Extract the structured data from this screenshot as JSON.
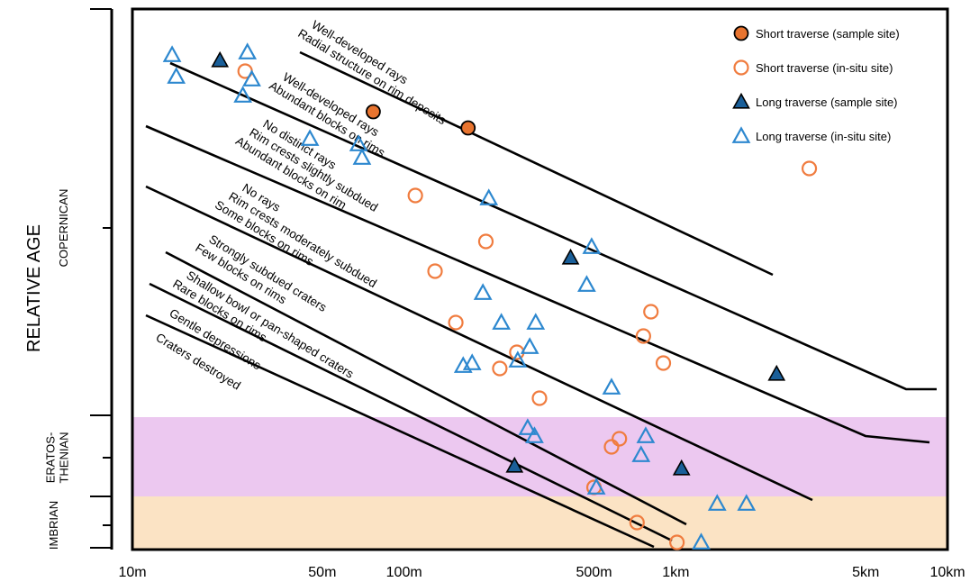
{
  "chart_data": {
    "type": "scatter",
    "ylabel": "RELATIVE AGE",
    "x_scale": "log",
    "xlim": [
      10,
      10000
    ],
    "x_ticks": [
      "10m",
      "50m",
      "100m",
      "500m",
      "1km",
      "5km",
      "10km"
    ],
    "x_tick_values": [
      10,
      50,
      100,
      500,
      1000,
      5000,
      10000
    ],
    "age_periods": [
      {
        "name": "COPERNICAN",
        "color": "#ffffff"
      },
      {
        "name": "ERATOS-\nTHENIAN",
        "color": "#ecc8f0"
      },
      {
        "name": "IMBRIAN",
        "color": "#fbe3c4"
      }
    ],
    "legend": {
      "position": "top-right",
      "entries": [
        {
          "label": "Short traverse (sample site)",
          "marker": "circle-filled",
          "color": "#e8742f"
        },
        {
          "label": "Short traverse (in-situ site)",
          "marker": "circle-open",
          "color": "#f07c3f"
        },
        {
          "label": "Long traverse (sample site)",
          "marker": "triangle-filled",
          "color": "#1a5f99"
        },
        {
          "label": "Long traverse (in-situ site)",
          "marker": "triangle-open",
          "color": "#2d88cf"
        }
      ]
    },
    "zone_labels": [
      [
        "Well-developed rays",
        "Radial structure on rim deposits"
      ],
      [
        "Well-developed rays",
        "Abundant blocks on rims"
      ],
      [
        "No distinct rays",
        "Rim crests slightly subdued",
        "Abundant blocks on rim"
      ],
      [
        "No rays",
        "Rim crests moderately subdued",
        "Some blocks on rims"
      ],
      [
        "Strongly subdued craters",
        "Few blocks on rims"
      ],
      [
        "Shallow bowl or pan-shaped craters",
        "Rare blocks on rims"
      ],
      [
        "Gentle depressions"
      ],
      [
        "Craters destroyed"
      ]
    ],
    "series": [
      {
        "name": "Short traverse (sample site)",
        "marker": "circle-filled",
        "points": [
          [
            77,
            0.81
          ],
          [
            172,
            0.78
          ]
        ]
      },
      {
        "name": "Short traverse (in-situ site)",
        "marker": "circle-open",
        "points": [
          [
            26,
            0.885
          ],
          [
            110,
            0.655
          ],
          [
            130,
            0.515
          ],
          [
            155,
            0.42
          ],
          [
            200,
            0.57
          ],
          [
            225,
            0.335
          ],
          [
            260,
            0.365
          ],
          [
            315,
            0.28
          ],
          [
            500,
            0.115
          ],
          [
            580,
            0.19
          ],
          [
            620,
            0.205
          ],
          [
            720,
            0.05
          ],
          [
            760,
            0.395
          ],
          [
            810,
            0.44
          ],
          [
            900,
            0.345
          ],
          [
            1010,
            -0.09
          ],
          [
            3100,
            0.705
          ]
        ]
      },
      {
        "name": "Long traverse (sample site)",
        "marker": "triangle-filled",
        "points": [
          [
            21,
            0.905
          ],
          [
            255,
            0.155
          ],
          [
            410,
            0.54
          ],
          [
            1050,
            0.15
          ],
          [
            2350,
            0.325
          ]
        ]
      },
      {
        "name": "Long traverse (in-situ site)",
        "marker": "triangle-open",
        "points": [
          [
            14,
            0.915
          ],
          [
            14.5,
            0.875
          ],
          [
            25.5,
            0.84
          ],
          [
            26.5,
            0.92
          ],
          [
            27.5,
            0.87
          ],
          [
            45,
            0.76
          ],
          [
            68,
            0.75
          ],
          [
            70,
            0.725
          ],
          [
            165,
            0.34
          ],
          [
            178,
            0.345
          ],
          [
            195,
            0.475
          ],
          [
            205,
            0.65
          ],
          [
            228,
            0.42
          ],
          [
            262,
            0.35
          ],
          [
            285,
            0.225
          ],
          [
            290,
            0.375
          ],
          [
            302,
            0.21
          ],
          [
            305,
            0.42
          ],
          [
            470,
            0.49
          ],
          [
            490,
            0.56
          ],
          [
            510,
            0.115
          ],
          [
            580,
            0.3
          ],
          [
            745,
            0.175
          ],
          [
            775,
            0.21
          ],
          [
            1240,
            -0.08
          ],
          [
            1420,
            0.085
          ],
          [
            1820,
            0.085
          ]
        ]
      }
    ]
  }
}
